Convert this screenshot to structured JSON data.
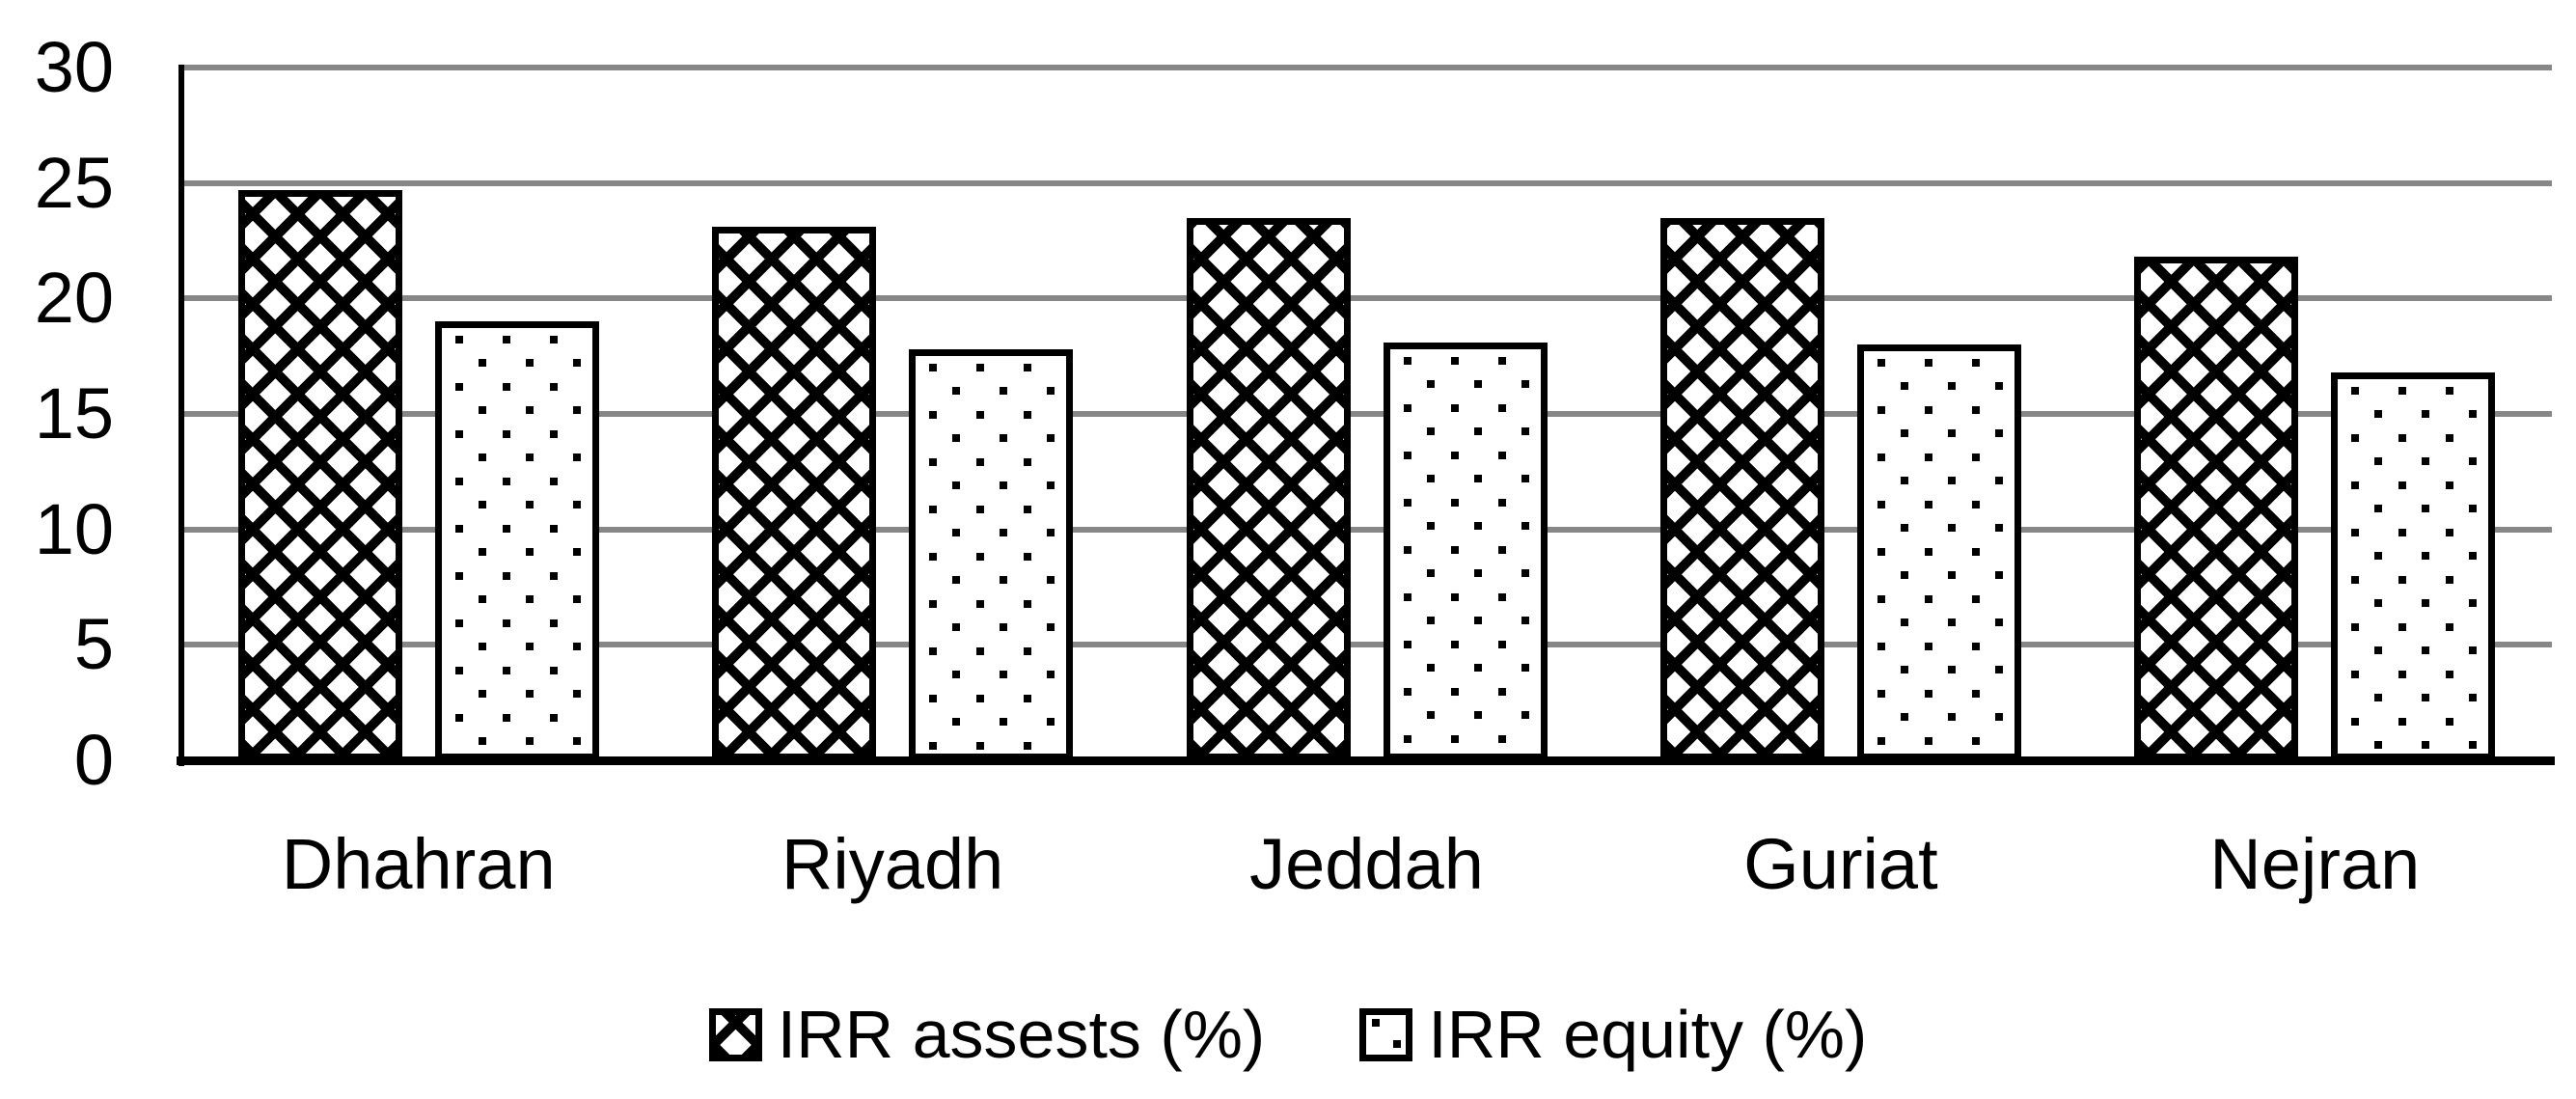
{
  "chart_data": {
    "type": "bar",
    "title": "",
    "xlabel": "",
    "ylabel": "",
    "categories": [
      "Dhahran",
      "Riyadh",
      "Jeddah",
      "Guriat",
      "Nejran"
    ],
    "series": [
      {
        "name": "IRR assests (%)",
        "pattern": "diagonal-crosshatch",
        "values": [
          24.7,
          23.1,
          23.5,
          23.5,
          21.8
        ]
      },
      {
        "name": "IRR equity (%)",
        "pattern": "square-dots",
        "values": [
          19.0,
          17.8,
          18.1,
          18.0,
          16.8
        ]
      }
    ],
    "ylim": [
      0,
      30
    ],
    "yticks": [
      0,
      5,
      10,
      15,
      20,
      25,
      30
    ],
    "grid": true,
    "grouped": true,
    "legend_position": "bottom",
    "colors": {
      "bar_fill": "#000000",
      "bar_outline": "#000000",
      "gridline": "#878787",
      "axis": "#000000",
      "background": "#ffffff",
      "text": "#000000"
    }
  }
}
